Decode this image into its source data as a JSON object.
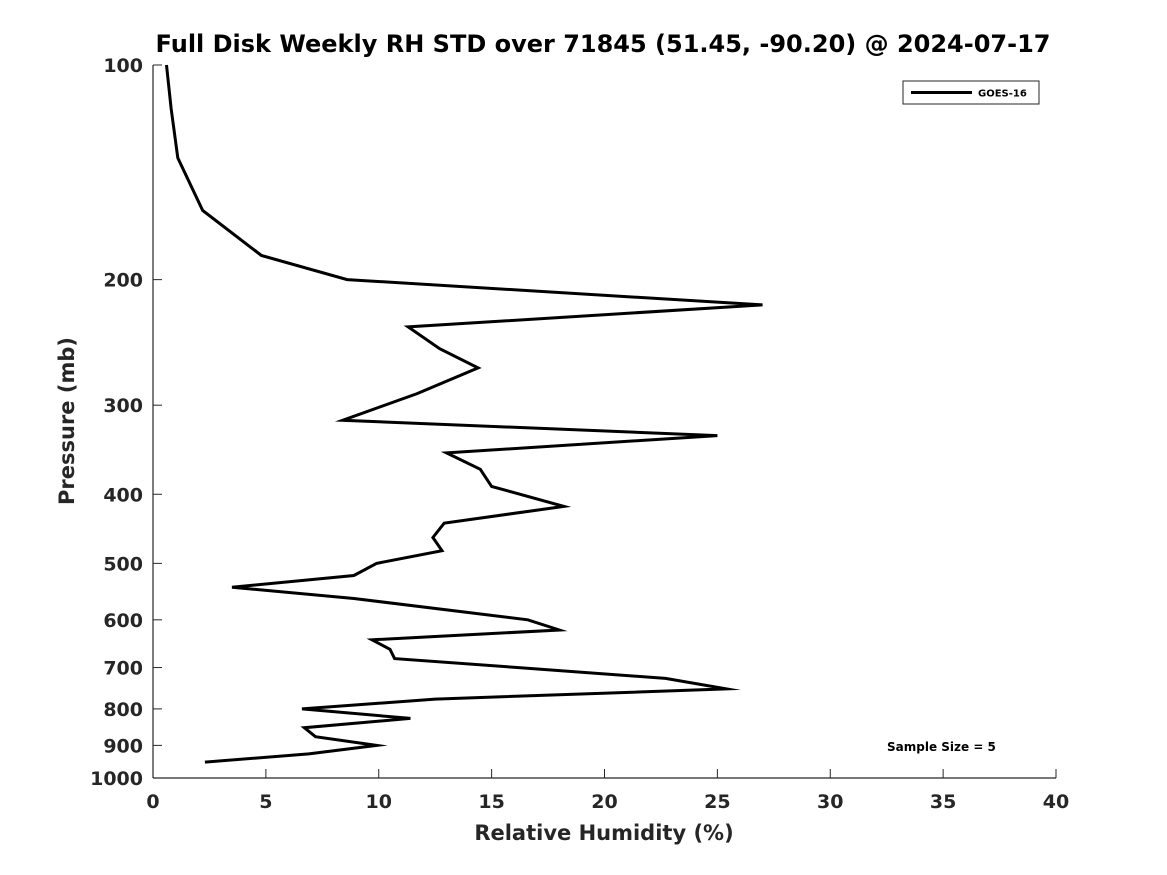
{
  "chart_data": {
    "type": "line",
    "title": "Full Disk Weekly RH STD over 71845 (51.45, -90.20) @ 2024-07-17",
    "xlabel": "Relative Humidity (%)",
    "ylabel": "Pressure (mb)",
    "xlim": [
      0,
      40
    ],
    "ylim": [
      100,
      1000
    ],
    "y_scale": "log",
    "y_reversed": true,
    "x_ticks": [
      0,
      5,
      10,
      15,
      20,
      25,
      30,
      35,
      40
    ],
    "y_ticks": [
      100,
      200,
      300,
      400,
      500,
      600,
      700,
      800,
      900,
      1000
    ],
    "grid": false,
    "legend_position": "top-right",
    "series": [
      {
        "name": "GOES-16",
        "color": "#000000",
        "points": [
          [
            0.6,
            100
          ],
          [
            0.8,
            115
          ],
          [
            1.1,
            135
          ],
          [
            2.2,
            160
          ],
          [
            4.8,
            185
          ],
          [
            8.6,
            200
          ],
          [
            27.0,
            217
          ],
          [
            11.3,
            233
          ],
          [
            12.7,
            250
          ],
          [
            14.4,
            266
          ],
          [
            11.7,
            289
          ],
          [
            8.4,
            315
          ],
          [
            25.0,
            331
          ],
          [
            13.0,
            350
          ],
          [
            14.5,
            369
          ],
          [
            15.0,
            390
          ],
          [
            18.2,
            416
          ],
          [
            12.9,
            439
          ],
          [
            12.4,
            460
          ],
          [
            12.8,
            480
          ],
          [
            9.9,
            500
          ],
          [
            8.9,
            520
          ],
          [
            3.5,
            540
          ],
          [
            8.9,
            560
          ],
          [
            16.6,
            600
          ],
          [
            18.0,
            620
          ],
          [
            9.7,
            640
          ],
          [
            10.5,
            660
          ],
          [
            10.7,
            680
          ],
          [
            16.2,
            700
          ],
          [
            22.7,
            725
          ],
          [
            25.4,
            750
          ],
          [
            12.5,
            775
          ],
          [
            6.6,
            800
          ],
          [
            11.4,
            825
          ],
          [
            6.7,
            850
          ],
          [
            7.2,
            875
          ],
          [
            9.9,
            900
          ],
          [
            6.9,
            925
          ],
          [
            2.3,
            950
          ]
        ]
      }
    ],
    "annotation": "Sample Size = 5"
  }
}
